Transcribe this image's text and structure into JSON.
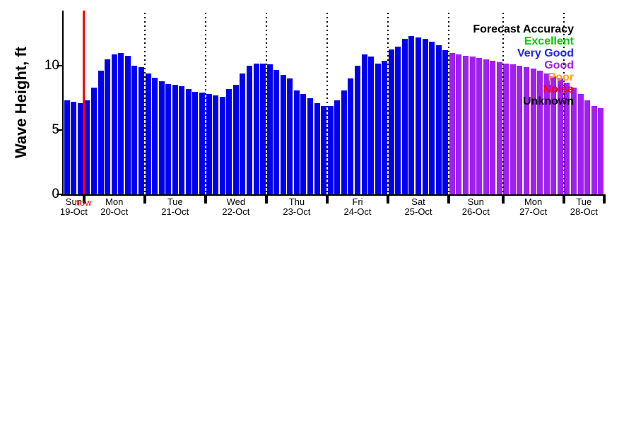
{
  "chart_data": {
    "type": "bar",
    "title": "",
    "ylabel": "Wave Height, ft",
    "xlabel": "",
    "ylim": [
      0,
      14.3
    ],
    "y_ticks": [
      "0",
      "5",
      "10"
    ],
    "y_tick_values": [
      0,
      5,
      10
    ],
    "grid": "dotted vertical lines at day boundaries",
    "legend_position": "top-right inside plot",
    "x_days": [
      {
        "day": "Sun",
        "date": "19-Oct",
        "bars": 3
      },
      {
        "day": "Mon",
        "date": "20-Oct",
        "bars": 9
      },
      {
        "day": "Tue",
        "date": "21-Oct",
        "bars": 9
      },
      {
        "day": "Wed",
        "date": "22-Oct",
        "bars": 9
      },
      {
        "day": "Thu",
        "date": "23-Oct",
        "bars": 9
      },
      {
        "day": "Fri",
        "date": "24-Oct",
        "bars": 9
      },
      {
        "day": "Sat",
        "date": "25-Oct",
        "bars": 9
      },
      {
        "day": "Sun",
        "date": "26-Oct",
        "bars": 8
      },
      {
        "day": "Mon",
        "date": "27-Oct",
        "bars": 9
      },
      {
        "day": "Tue",
        "date": "28-Oct",
        "bars": 6
      }
    ],
    "values_ft": [
      7.3,
      7.2,
      7.1,
      7.3,
      8.3,
      9.6,
      10.5,
      10.9,
      11.0,
      10.8,
      10.0,
      9.9,
      9.4,
      9.1,
      8.8,
      8.6,
      8.5,
      8.4,
      8.2,
      8.0,
      7.9,
      7.8,
      7.7,
      7.6,
      8.2,
      8.5,
      9.4,
      10.0,
      10.2,
      10.2,
      10.1,
      9.7,
      9.3,
      9.0,
      8.1,
      7.8,
      7.5,
      7.1,
      6.9,
      6.9,
      7.3,
      8.1,
      9.0,
      10.0,
      10.9,
      10.7,
      10.2,
      10.4,
      11.3,
      11.5,
      12.1,
      12.3,
      12.2,
      12.1,
      11.9,
      11.6,
      11.2,
      11.0,
      10.9,
      10.8,
      10.7,
      10.6,
      10.5,
      10.4,
      10.3,
      10.2,
      10.1,
      10.0,
      9.9,
      9.8,
      9.6,
      9.4,
      9.2,
      9.0,
      8.7,
      8.3,
      7.8,
      7.3,
      6.9,
      6.7
    ],
    "colors": {
      "very_good": "#0000EE",
      "good": "#A020F0"
    },
    "accuracy_by_bar": {
      "very_good_through_index": 56
    },
    "now": {
      "label": "now",
      "color": "#FF0000",
      "at_boundary_after_day_index": 0
    },
    "legend": {
      "title": "Forecast Accuracy",
      "title_color": "#000000",
      "items": [
        {
          "label": "Excellent",
          "color": "#00CC00"
        },
        {
          "label": "Very Good",
          "color": "#2222FF"
        },
        {
          "label": "Good",
          "color": "#A020F0"
        },
        {
          "label": "Poor",
          "color": "#FFA500"
        },
        {
          "label": "Noise",
          "color": "#FF0000"
        },
        {
          "label": "Unknown",
          "color": "#000000"
        }
      ]
    }
  }
}
